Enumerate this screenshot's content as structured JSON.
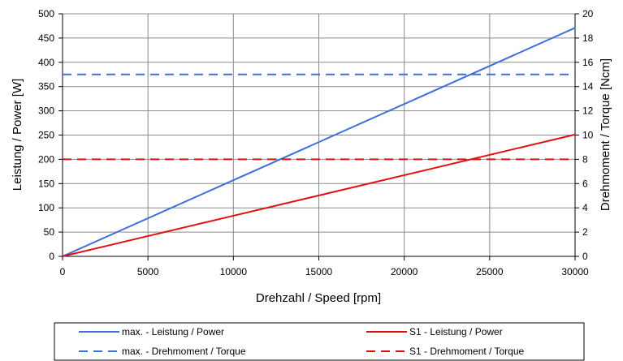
{
  "chart_data": {
    "type": "line",
    "xlabel": "Drehzahl / Speed [rpm]",
    "ylabel": "Leistung / Power [W]",
    "y2label": "Drehmoment / Torque [Ncm]",
    "xlim": [
      0,
      30000
    ],
    "ylim": [
      0,
      500
    ],
    "y2lim": [
      0,
      20
    ],
    "x_ticks": [
      "0",
      "5000",
      "10000",
      "15000",
      "20000",
      "25000",
      "30000"
    ],
    "y_ticks": [
      "0",
      "50",
      "100",
      "150",
      "200",
      "250",
      "300",
      "350",
      "400",
      "450",
      "500"
    ],
    "y2_ticks": [
      "0",
      "2",
      "4",
      "6",
      "8",
      "10",
      "12",
      "14",
      "16",
      "18",
      "20"
    ],
    "grid": true,
    "legend_position": "bottom",
    "series": [
      {
        "name": "max. - Leistung / Power",
        "axis": "left",
        "color": "#3f6fdc",
        "style": "solid",
        "x": [
          0,
          30000
        ],
        "values": [
          0,
          471
        ]
      },
      {
        "name": "S1 - Leistung / Power",
        "axis": "left",
        "color": "#e01010",
        "style": "solid",
        "x": [
          0,
          30000
        ],
        "values": [
          0,
          251
        ]
      },
      {
        "name": "max. - Drehmoment / Torque",
        "axis": "right",
        "color": "#3f6fdc",
        "style": "dashed",
        "x": [
          0,
          30000
        ],
        "values": [
          15,
          15
        ]
      },
      {
        "name": "S1 - Drehmoment / Torque",
        "axis": "right",
        "color": "#e01010",
        "style": "dashed",
        "x": [
          0,
          30000
        ],
        "values": [
          8,
          8
        ]
      }
    ]
  }
}
